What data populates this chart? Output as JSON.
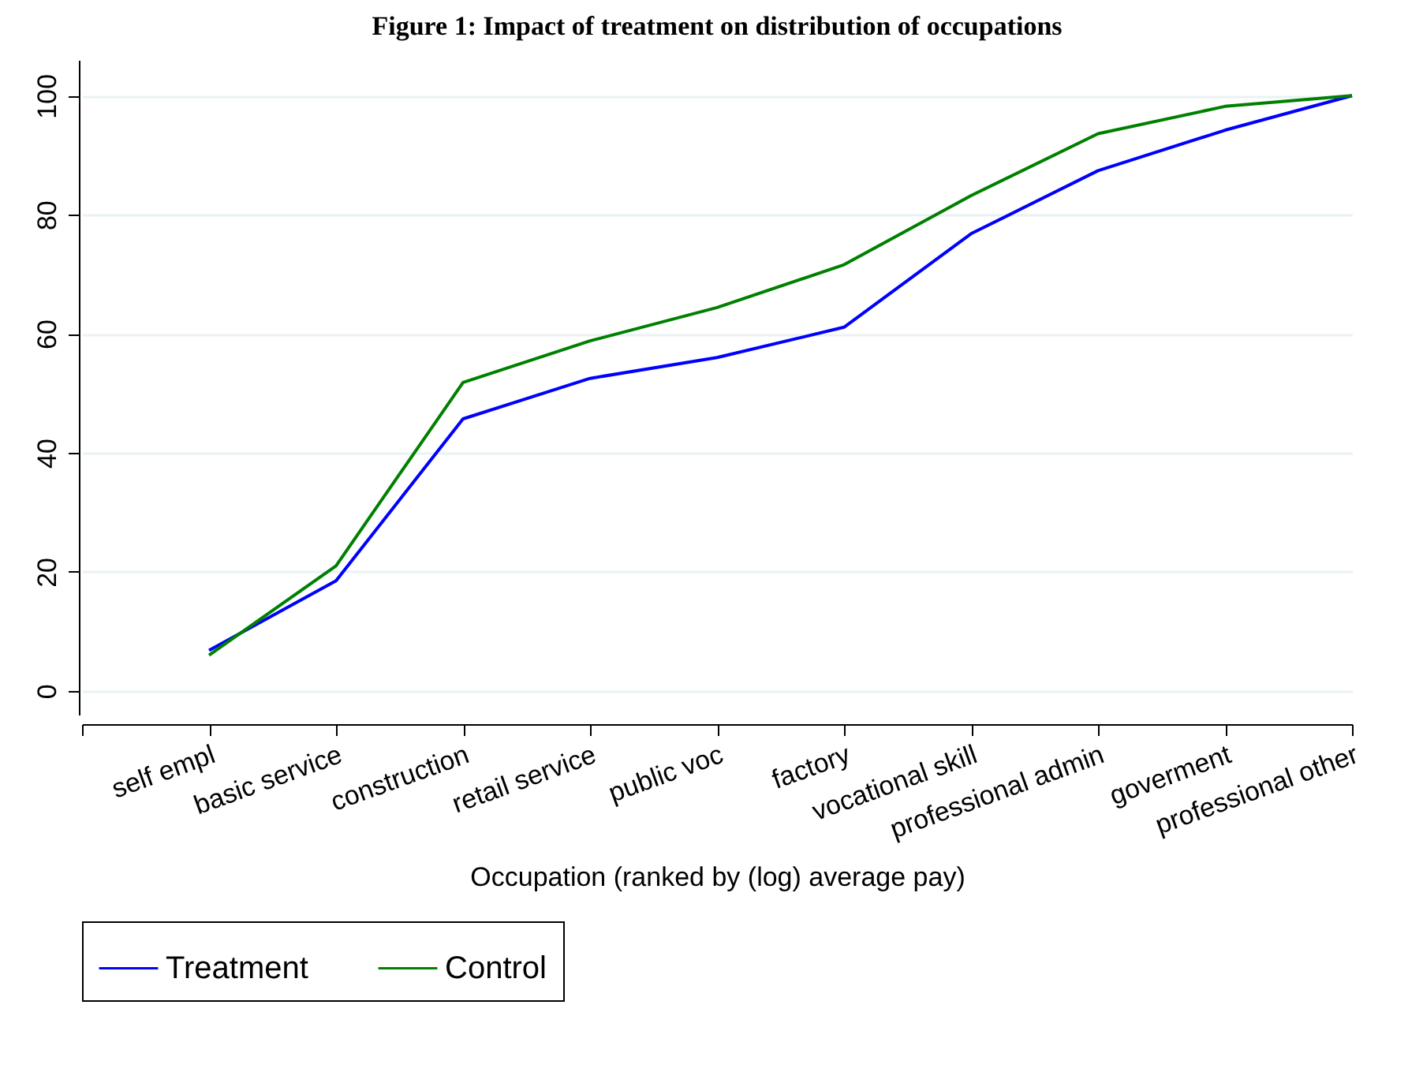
{
  "chart_data": {
    "type": "line",
    "title": "Figure 1: Impact of treatment on distribution of occupations",
    "xlabel": "Occupation (ranked by (log) average pay)",
    "categories": [
      null,
      "self empl",
      "basic service",
      "construction",
      "retail service",
      "public voc",
      "factory",
      "vocational skill",
      "professional admin",
      "goverment",
      "professional other"
    ],
    "series": [
      {
        "name": "Treatment",
        "color": "#0000ff",
        "values": [
          null,
          6.8,
          18.5,
          45.7,
          52.5,
          56,
          61.1,
          76.8,
          87.4,
          94.2,
          100
        ]
      },
      {
        "name": "Control",
        "color": "#008000",
        "values": [
          null,
          6.0,
          21.0,
          51.8,
          58.8,
          64.4,
          71.6,
          83.2,
          93.6,
          98.2,
          100
        ]
      }
    ],
    "ylim": [
      -4,
      106
    ],
    "yticks": [
      0,
      20,
      40,
      60,
      80,
      100
    ],
    "grid": "y",
    "legend": "bottom"
  }
}
